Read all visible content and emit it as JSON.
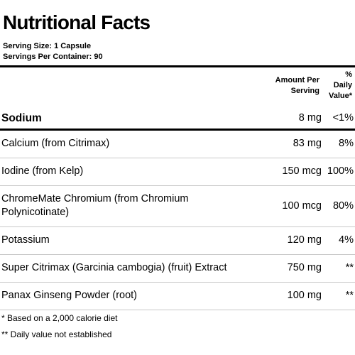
{
  "panel": {
    "title": "Nutritional Facts",
    "serving_size": "Serving Size:  1 Capsule",
    "servings_per_container": "Servings Per Container:  90"
  },
  "columns": {
    "amount_line1": "Amount Per",
    "amount_line2": "Serving",
    "dv_line1": "%",
    "dv_line2": "Daily",
    "dv_line3": "Value*"
  },
  "rows": [
    {
      "name": "Sodium",
      "amount": "8 mg",
      "dv": "<1%"
    },
    {
      "name": "Calcium (from Citrimax)",
      "amount": "83 mg",
      "dv": "8%"
    },
    {
      "name": "Iodine (from Kelp)",
      "amount": "150 mcg",
      "dv": "100%"
    },
    {
      "name": "ChromeMate Chromium (from Chromium Polynicotinate)",
      "amount": "100 mcg",
      "dv": "80%"
    },
    {
      "name": "Potassium",
      "amount": "120 mg",
      "dv": "4%"
    },
    {
      "name": "Super Citrimax (Garcinia cambogia) (fruit) Extract",
      "amount": "750 mg",
      "dv": "**"
    },
    {
      "name": "Panax Ginseng Powder (root)",
      "amount": "100 mg",
      "dv": "**"
    }
  ],
  "footnotes": {
    "calorie_note": "* Based on a 2,000 calorie diet",
    "dv_note": "** Daily value not established"
  }
}
